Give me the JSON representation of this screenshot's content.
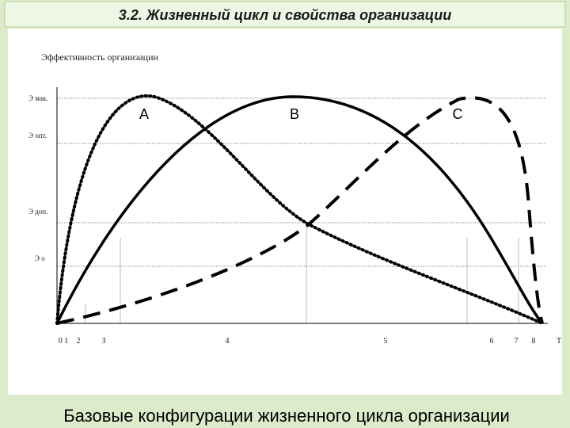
{
  "header": {
    "title": "3.2. Жизненный цикл и свойства организации"
  },
  "diagram": {
    "y_axis_label": "Эффективность организации",
    "levels": [
      "Э мак.",
      "Э опт.",
      "Э доп.",
      "Э о"
    ],
    "curves": [
      "A",
      "B",
      "C"
    ],
    "x_labels": [
      "0 1",
      "2",
      "3",
      "4",
      "5",
      "6",
      "7",
      "8",
      "T"
    ]
  },
  "footer": {
    "caption": "Базовые конфигурации жизненного цикла организации"
  }
}
